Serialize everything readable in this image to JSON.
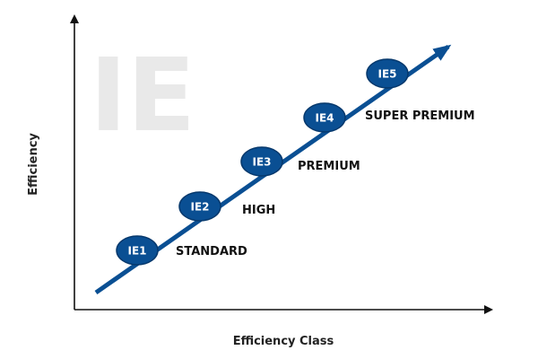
{
  "watermark": {
    "text": "IE",
    "color": "#e9e9e9"
  },
  "axes": {
    "x_title": "Efficiency Class",
    "y_title": "Efficiency"
  },
  "colors": {
    "accent": "#0a4f93",
    "node_fill": "#0a4f93",
    "node_stroke": "#06386c"
  },
  "classes": [
    {
      "code": "IE1",
      "name": "STANDARD"
    },
    {
      "code": "IE2",
      "name": "HIGH"
    },
    {
      "code": "IE3",
      "name": "PREMIUM"
    },
    {
      "code": "IE4",
      "name": "SUPER PREMIUM"
    },
    {
      "code": "IE5",
      "name": ""
    }
  ]
}
